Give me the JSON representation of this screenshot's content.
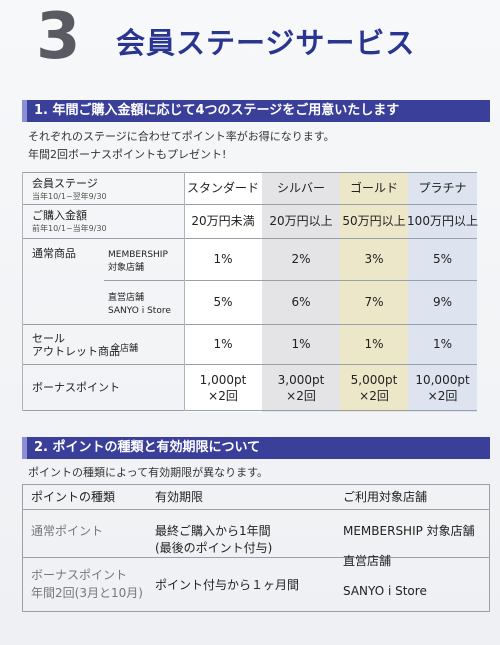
{
  "header": {
    "number": "3",
    "title": "会員ステージサービス"
  },
  "section1": {
    "heading": "1. 年間ご購入金額に応じて4つのステージをご用意いたします",
    "intro1": "それぞれのステージに合わせてポイント率がお得になります。",
    "intro2": "年間2回ボーナスポイントもプレゼント!",
    "row_stage_label": "会員ステージ",
    "row_stage_sub": "当年10/1~翌年9/30",
    "row_amount_label": "ご購入金額",
    "row_amount_sub": "前年10/1~当年9/30",
    "normal_label": "通常商品",
    "membership_label1": "MEMBERSHIP",
    "membership_label2": "対象店舗",
    "direct_label1": "直営店舗",
    "direct_label2": "SANYO i Store",
    "sale_label1": "セール",
    "sale_label2": "アウトレット商品",
    "sale_sub": "全店舗",
    "bonus_label": "ボーナスポイント",
    "stages": [
      {
        "name": "スタンダード",
        "amount": "20万円未満",
        "rate_member": "1%",
        "rate_direct": "5%",
        "rate_sale": "1%",
        "bonus": "1,000pt",
        "times": "×2回"
      },
      {
        "name": "シルバー",
        "amount": "20万円以上",
        "rate_member": "2%",
        "rate_direct": "6%",
        "rate_sale": "1%",
        "bonus": "3,000pt",
        "times": "×2回"
      },
      {
        "name": "ゴールド",
        "amount": "50万円以上",
        "rate_member": "3%",
        "rate_direct": "7%",
        "rate_sale": "1%",
        "bonus": "5,000pt",
        "times": "×2回"
      },
      {
        "name": "プラチナ",
        "amount": "100万円以上",
        "rate_member": "5%",
        "rate_direct": "9%",
        "rate_sale": "1%",
        "bonus": "10,000pt",
        "times": "×2回"
      }
    ],
    "colors": {
      "standard": "#ffffff",
      "silver": "#e4e3e6",
      "gold": "#ece7c8",
      "platinum": "#dde3ef"
    }
  },
  "section2": {
    "heading": "2. ポイントの種類と有効期限について",
    "intro": "ポイントの種類によって有効期限が異なります。",
    "col_type": "ポイントの種類",
    "col_period": "有効期限",
    "col_stores": "ご利用対象店舗",
    "normal_type": "通常ポイント",
    "normal_period1": "最終ご購入から1年間",
    "normal_period2": "(最後のポイント付与)",
    "bonus_type1": "ボーナスポイント",
    "bonus_type2": "年間2回(3月と10月)",
    "bonus_period": "ポイント付与から１ヶ月間",
    "store1": "MEMBERSHIP 対象店舗",
    "store2": "直営店舗",
    "store3": "SANYO i Store"
  }
}
